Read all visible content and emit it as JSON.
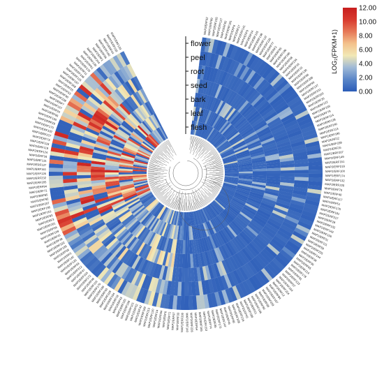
{
  "chart_data": {
    "type": "heatmap",
    "layout": "circular",
    "tissues": [
      "flower",
      "peel",
      "root",
      "seed",
      "bark",
      "leaf",
      "flesh"
    ],
    "colorbar": {
      "title": "LOG₂(FPKM+1)",
      "min": 0,
      "max": 12,
      "ticks": [
        "12.00",
        "10.00",
        "8.00",
        "6.00",
        "4.00",
        "2.00",
        "0.00"
      ],
      "colors": [
        "#2b5cb8",
        "#5a86c8",
        "#9fb9d6",
        "#f2e8b5",
        "#f3c18c",
        "#e67857",
        "#d83a2e",
        "#c81e1e"
      ]
    },
    "genes": [
      "MAP2/ERF62",
      "MAP2/ERF89",
      "MAP2/ERF155",
      "MAP2/ERF127",
      "MAP2/ERF82",
      "MAP2/ERF191",
      "MAP2/ERF8",
      "MAP2/ERF17",
      "MAP2/ERF141",
      "MAP2/ERF9",
      "MAP2/ERF24",
      "MAP2/ERF125",
      "MAP2/ERF138",
      "MAP2/ERF110",
      "MAP2/ERF225",
      "MAP2/ERF77",
      "MAP2/ERF2",
      "MAP2/ERF95",
      "MAP2/ERF196",
      "MAP2/ERF166",
      "MAP2/ERF68",
      "MAP2/ERF234",
      "MAP2/ERF16",
      "MAP2/ERF10",
      "MAP2/ERF130",
      "MAP2/ERF98",
      "MAP2/ERF208",
      "MAP2/ERF99",
      "MAP2/ERF137",
      "MAP2/ERF231",
      "MAP2/ERF203",
      "MAP2/ERF26",
      "MAP2/ERF122",
      "MAP2/ERF159",
      "MAP2/ERF79",
      "MAP2/ERF114",
      "MAP2/ERF128",
      "MAP2/ERF240",
      "MAP2/ERF113",
      "MAP2/ERF186",
      "MAP2/ERF22",
      "MAP2/ERF239",
      "MAP2/ERF15",
      "MAP2/ERF207",
      "MAP2/ERF149",
      "MAP2/ERF151",
      "MAP2/ERF219",
      "MAP2/ERF100",
      "MAP2/ERF174",
      "MAP2/ERF132",
      "MAP2/ERF220",
      "MAP2/ERF70",
      "MAP2/ERF40",
      "MAP2/ERF117",
      "MAP2/ERF51",
      "MAP2/ERF175",
      "MAP2/ERF181",
      "MAP2/ERF217",
      "MAP2/ERF28",
      "MAP2/ERF102",
      "MAP2/ERF143",
      "MAP2/ERF106",
      "MAP2/ERF31",
      "MAP2/ERF111",
      "MAP2/ERF59",
      "MAP2/ERF235",
      "MAP2/ERF144",
      "MAP2/ERF38",
      "MAP2/ERF36",
      "MAP2/ERF65",
      "MAP2/ERF214",
      "MAP2/ERF178",
      "MAP2/ERF91",
      "MAP2/ERF123",
      "MAP2/ERF57",
      "MAP2/ERF164",
      "MAP2/ERF224",
      "MAP2/ERF12",
      "MAP2/ERF84",
      "MAP2/ERF107",
      "MAP2/ERF209",
      "MAP2/ERF88",
      "MAP2/ERF80",
      "MAP2/ERF146",
      "MAP2/ERF21",
      "MAP2/ERF188",
      "MAP2/ERF45",
      "MAP2/ERF216",
      "MAP2/ERF108",
      "MAP2/ERF66",
      "MAP2/ERF46",
      "MAP2/ERF147",
      "MAP2/ERF173",
      "MAP2/ERF85",
      "MAP2/ERF74",
      "MAP2/ERF153",
      "MAP2/ERF165",
      "MAP2/ERF54",
      "MAP2/ERF226",
      "MAP2/ERF140",
      "MAP2/ERF200",
      "MAP2/ERF33",
      "MAP2/ERF97",
      "MAP2/ERF72",
      "MAP2/ERF6",
      "MAP2/ERF94",
      "MAP2/ERF14",
      "MAP2/ERF120",
      "MAP2/ERF213",
      "MAP2/ERF169",
      "MAP2/ERF42",
      "MAP2/ERF52",
      "MAP2/ERF101",
      "MAP2/ERF158",
      "MAP2/ERF183",
      "MAP2/ERF43",
      "MAP2/ERF19",
      "MAP2/ERF104",
      "MAP2/ERF228",
      "MAP2/ERF63",
      "MAP2/ERF199",
      "MAP2/ERF179",
      "MAP2/ERF116",
      "MAP2/ERF48",
      "MAP2/ERF172",
      "MAP2/ERF105",
      "MAP2/ERF47",
      "MAP2/ERF212",
      "MAP2/ERF93",
      "MAP2/ERF135",
      "MAP2/ERF142",
      "MAP2/ERF5",
      "MAP2/ERF58",
      "MAP2/ERF185",
      "MAP2/ERF222",
      "MAP2/ERF39",
      "MAP2/ERF41",
      "MAP2/ERF109",
      "MAP2/ERF56",
      "MAP2/ERF201",
      "MAP2/ERF3",
      "MAP2/ERF83",
      "MAP2/ERF151",
      "MAP2/ERF195",
      "MAP2/ERF207",
      "MAP2/ERF92",
      "MAP2/ERF65",
      "MAP2/ERF71",
      "MAP2/ERF94",
      "MAP2/ERF205",
      "MAP2/ERF232",
      "MAP2/ERF126",
      "MAP2/ERF161",
      "MAP2/ERF127",
      "MAP2/ERF131",
      "MAP2/ERF34",
      "MAP2/ERF124",
      "MAP2/ERF119",
      "MAP2/ERF118",
      "MAP2/ERF73",
      "MAP2/ERF227",
      "MAP2/ERF192",
      "MAP2/ERF170",
      "MAP2/ERF29",
      "MAP2/ERF150",
      "MAP2/ERF86",
      "MAP2/ERF20",
      "MAP2/ERF157",
      "MAP2/ERF7",
      "MAP2/ERF238",
      "MAP2/ERF90",
      "MAP2/ERF53",
      "MAP2/ERF25",
      "MAP2/ERF168",
      "MAP2/ERF187",
      "MAP2/ERF115",
      "MAP2/ERF148",
      "MAP2/ERF11",
      "MAP2/ERF176",
      "MAP2/ERF61",
      "MAP2/ERF139",
      "MAP2/ERF204",
      "MAP2/ERF1",
      "MAP2/ERF96",
      "MAP2/ERF160",
      "MAP2/ERF44",
      "MAP2/ERF218",
      "MAP2/ERF133"
    ]
  }
}
